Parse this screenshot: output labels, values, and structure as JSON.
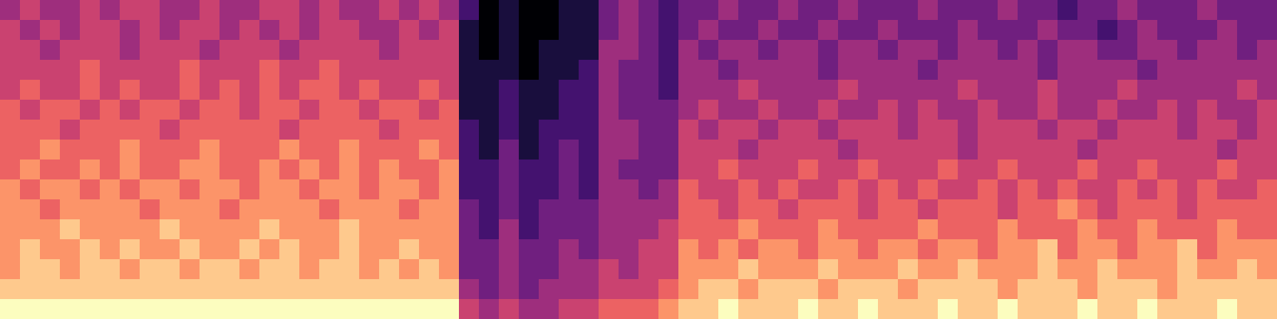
{
  "chart_data": {
    "type": "heatmap",
    "tick_labels": false,
    "cells": [
      [
        4,
        5,
        4,
        4,
        5,
        4,
        5,
        5,
        4,
        4,
        5,
        4,
        4,
        5,
        5,
        4,
        5,
        4,
        4,
        5,
        4,
        5,
        4,
        2,
        0,
        1,
        0,
        0,
        1,
        1,
        3,
        4,
        3,
        2,
        3,
        3,
        4,
        3,
        3,
        4,
        3,
        3,
        4,
        3,
        3,
        3,
        4,
        3,
        3,
        3,
        4,
        3,
        3,
        2,
        3,
        3,
        4,
        3,
        3,
        3,
        4,
        3,
        3,
        3
      ],
      [
        5,
        4,
        5,
        4,
        5,
        5,
        4,
        5,
        4,
        5,
        5,
        4,
        5,
        4,
        5,
        4,
        5,
        5,
        4,
        4,
        5,
        4,
        5,
        1,
        0,
        1,
        0,
        0,
        1,
        1,
        3,
        4,
        3,
        2,
        3,
        4,
        3,
        3,
        4,
        3,
        3,
        4,
        3,
        3,
        4,
        3,
        3,
        3,
        4,
        3,
        3,
        3,
        4,
        3,
        3,
        2,
        3,
        4,
        3,
        3,
        3,
        4,
        3,
        3
      ],
      [
        5,
        5,
        4,
        5,
        5,
        5,
        4,
        5,
        5,
        5,
        4,
        5,
        5,
        5,
        4,
        5,
        5,
        5,
        5,
        4,
        5,
        5,
        5,
        1,
        0,
        1,
        0,
        1,
        1,
        1,
        4,
        4,
        3,
        2,
        4,
        3,
        4,
        4,
        3,
        4,
        4,
        3,
        4,
        4,
        3,
        4,
        4,
        3,
        4,
        4,
        3,
        4,
        3,
        4,
        4,
        3,
        3,
        4,
        4,
        3,
        4,
        4,
        3,
        4
      ],
      [
        5,
        5,
        5,
        5,
        6,
        5,
        5,
        5,
        5,
        6,
        5,
        5,
        5,
        6,
        5,
        5,
        6,
        5,
        5,
        5,
        5,
        5,
        5,
        1,
        1,
        1,
        0,
        1,
        1,
        2,
        4,
        3,
        3,
        2,
        4,
        4,
        3,
        4,
        4,
        4,
        4,
        3,
        4,
        4,
        4,
        4,
        3,
        4,
        4,
        4,
        4,
        4,
        3,
        4,
        4,
        4,
        4,
        3,
        4,
        4,
        4,
        4,
        4,
        4
      ],
      [
        5,
        6,
        5,
        5,
        6,
        5,
        6,
        5,
        5,
        6,
        5,
        6,
        5,
        6,
        5,
        6,
        6,
        5,
        6,
        5,
        5,
        6,
        5,
        1,
        1,
        2,
        1,
        1,
        2,
        2,
        4,
        3,
        3,
        2,
        4,
        4,
        4,
        5,
        4,
        4,
        4,
        4,
        5,
        4,
        4,
        4,
        4,
        4,
        5,
        4,
        4,
        4,
        5,
        4,
        4,
        4,
        5,
        4,
        4,
        4,
        4,
        4,
        5,
        4
      ],
      [
        6,
        5,
        6,
        6,
        5,
        6,
        5,
        6,
        6,
        5,
        6,
        6,
        5,
        6,
        6,
        5,
        6,
        6,
        5,
        6,
        6,
        5,
        6,
        1,
        1,
        2,
        1,
        1,
        2,
        2,
        4,
        3,
        3,
        3,
        4,
        5,
        4,
        4,
        5,
        4,
        4,
        5,
        4,
        4,
        5,
        4,
        5,
        4,
        4,
        5,
        4,
        4,
        5,
        4,
        4,
        5,
        4,
        4,
        5,
        4,
        5,
        4,
        4,
        5
      ],
      [
        6,
        6,
        6,
        5,
        6,
        6,
        6,
        6,
        5,
        6,
        6,
        6,
        6,
        6,
        5,
        6,
        6,
        6,
        6,
        5,
        6,
        6,
        6,
        2,
        1,
        2,
        1,
        2,
        2,
        2,
        4,
        4,
        3,
        3,
        5,
        4,
        5,
        5,
        4,
        5,
        5,
        4,
        5,
        5,
        5,
        4,
        5,
        5,
        4,
        5,
        5,
        5,
        4,
        5,
        5,
        4,
        5,
        5,
        5,
        4,
        5,
        5,
        4,
        5
      ],
      [
        6,
        6,
        7,
        6,
        6,
        6,
        7,
        6,
        6,
        6,
        7,
        6,
        6,
        6,
        7,
        6,
        6,
        7,
        6,
        6,
        6,
        7,
        6,
        2,
        1,
        3,
        1,
        2,
        3,
        2,
        4,
        4,
        3,
        3,
        5,
        5,
        5,
        4,
        5,
        5,
        5,
        5,
        4,
        5,
        5,
        5,
        5,
        5,
        4,
        5,
        5,
        5,
        5,
        5,
        4,
        5,
        5,
        5,
        5,
        5,
        5,
        4,
        5,
        5
      ],
      [
        6,
        7,
        6,
        6,
        7,
        6,
        7,
        6,
        6,
        7,
        7,
        6,
        6,
        7,
        6,
        7,
        6,
        7,
        6,
        7,
        6,
        6,
        7,
        2,
        2,
        3,
        2,
        2,
        3,
        2,
        4,
        3,
        3,
        3,
        5,
        5,
        6,
        5,
        5,
        5,
        6,
        5,
        5,
        6,
        5,
        5,
        5,
        6,
        5,
        5,
        6,
        5,
        5,
        5,
        6,
        5,
        5,
        6,
        5,
        5,
        5,
        6,
        5,
        5
      ],
      [
        7,
        6,
        7,
        7,
        6,
        7,
        6,
        7,
        7,
        6,
        7,
        7,
        6,
        7,
        7,
        6,
        7,
        7,
        6,
        7,
        7,
        6,
        7,
        2,
        2,
        3,
        2,
        2,
        3,
        2,
        4,
        4,
        3,
        4,
        6,
        5,
        5,
        6,
        5,
        6,
        5,
        5,
        6,
        5,
        6,
        5,
        6,
        5,
        5,
        6,
        5,
        6,
        5,
        6,
        5,
        5,
        6,
        5,
        6,
        5,
        6,
        5,
        5,
        6
      ],
      [
        7,
        7,
        6,
        7,
        7,
        7,
        7,
        6,
        7,
        7,
        7,
        6,
        7,
        7,
        7,
        7,
        6,
        7,
        7,
        7,
        6,
        7,
        7,
        3,
        2,
        3,
        2,
        3,
        3,
        3,
        4,
        4,
        4,
        4,
        6,
        6,
        5,
        6,
        6,
        5,
        6,
        6,
        6,
        5,
        6,
        6,
        5,
        6,
        6,
        6,
        5,
        6,
        6,
        7,
        6,
        5,
        6,
        6,
        6,
        5,
        6,
        6,
        6,
        6
      ],
      [
        7,
        7,
        7,
        8,
        7,
        7,
        7,
        7,
        8,
        7,
        7,
        7,
        7,
        8,
        7,
        7,
        7,
        8,
        7,
        7,
        7,
        7,
        7,
        3,
        2,
        4,
        2,
        3,
        3,
        3,
        4,
        4,
        4,
        5,
        6,
        6,
        6,
        7,
        6,
        6,
        6,
        7,
        6,
        6,
        6,
        6,
        7,
        6,
        6,
        6,
        7,
        6,
        6,
        6,
        7,
        6,
        6,
        7,
        6,
        6,
        6,
        7,
        6,
        6
      ],
      [
        7,
        8,
        7,
        7,
        8,
        7,
        8,
        7,
        7,
        8,
        7,
        7,
        8,
        7,
        8,
        7,
        7,
        8,
        7,
        7,
        8,
        7,
        7,
        3,
        3,
        4,
        3,
        3,
        4,
        3,
        4,
        4,
        5,
        5,
        7,
        6,
        7,
        6,
        7,
        7,
        6,
        7,
        7,
        6,
        7,
        7,
        6,
        7,
        7,
        6,
        7,
        7,
        8,
        6,
        7,
        7,
        6,
        7,
        7,
        8,
        6,
        7,
        7,
        7
      ],
      [
        7,
        8,
        8,
        7,
        8,
        8,
        7,
        8,
        8,
        7,
        8,
        8,
        7,
        8,
        8,
        7,
        8,
        8,
        7,
        8,
        7,
        8,
        7,
        3,
        3,
        4,
        3,
        3,
        4,
        4,
        5,
        4,
        5,
        5,
        7,
        7,
        7,
        8,
        7,
        7,
        7,
        8,
        7,
        7,
        7,
        8,
        7,
        7,
        8,
        7,
        7,
        7,
        8,
        7,
        7,
        8,
        7,
        7,
        7,
        8,
        7,
        7,
        8,
        7
      ],
      [
        8,
        8,
        8,
        8,
        8,
        8,
        8,
        8,
        8,
        8,
        8,
        8,
        8,
        8,
        8,
        8,
        8,
        8,
        8,
        8,
        8,
        8,
        8,
        4,
        3,
        4,
        3,
        4,
        4,
        4,
        5,
        5,
        5,
        6,
        7,
        8,
        8,
        7,
        8,
        8,
        8,
        7,
        8,
        8,
        8,
        7,
        8,
        8,
        8,
        8,
        7,
        8,
        8,
        8,
        7,
        8,
        8,
        8,
        7,
        8,
        8,
        8,
        8,
        8
      ],
      [
        9,
        9,
        9,
        9,
        9,
        9,
        9,
        9,
        9,
        9,
        9,
        9,
        9,
        9,
        9,
        9,
        9,
        9,
        9,
        9,
        9,
        9,
        9,
        5,
        4,
        5,
        4,
        4,
        5,
        5,
        6,
        6,
        6,
        7,
        8,
        8,
        9,
        8,
        8,
        8,
        9,
        8,
        8,
        9,
        8,
        8,
        8,
        9,
        8,
        8,
        9,
        8,
        8,
        8,
        9,
        8,
        8,
        9,
        8,
        8,
        8,
        9,
        8,
        8
      ]
    ]
  }
}
